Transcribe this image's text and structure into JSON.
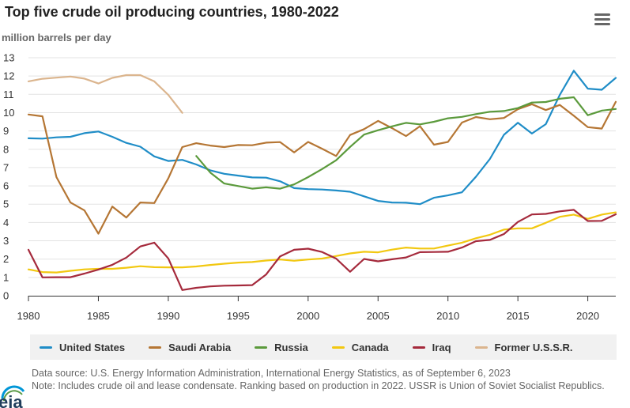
{
  "title": "Top five crude oil producing countries, 1980-2022",
  "menu": {
    "icon": "hamburger-menu-icon"
  },
  "notes": {
    "source": "Data source: U.S. Energy Information Administration, International Energy Statistics, as of September 6, 2023",
    "note": "Note: Includes crude oil and lease condensate. Ranking based on production in 2022. USSR is Union of Soviet Socialist Republics."
  },
  "logo": {
    "text": "eia",
    "colors": {
      "blue": "#0096d7",
      "green": "#5a9a46",
      "dark": "#1f3d5b"
    }
  },
  "chart_data": {
    "type": "line",
    "title": "Top five crude oil producing countries, 1980-2022",
    "ylabel": "million barrels per day",
    "xlabel": "",
    "xlim": [
      1980,
      2022
    ],
    "ylim": [
      0,
      13
    ],
    "xticks": [
      1980,
      1985,
      1990,
      1995,
      2000,
      2005,
      2010,
      2015,
      2020
    ],
    "yticks": [
      0,
      1,
      2,
      3,
      4,
      5,
      6,
      7,
      8,
      9,
      10,
      11,
      12,
      13
    ],
    "grid": "horizontal",
    "legend_position": "bottom",
    "series": [
      {
        "name": "United States",
        "color": "#1f8dc7",
        "x": [
          1980,
          1981,
          1982,
          1983,
          1984,
          1985,
          1986,
          1987,
          1988,
          1989,
          1990,
          1991,
          1992,
          1993,
          1994,
          1995,
          1996,
          1997,
          1998,
          1999,
          2000,
          2001,
          2002,
          2003,
          2004,
          2005,
          2006,
          2007,
          2008,
          2009,
          2010,
          2011,
          2012,
          2013,
          2014,
          2015,
          2016,
          2017,
          2018,
          2019,
          2020,
          2021,
          2022
        ],
        "values": [
          8.6,
          8.58,
          8.65,
          8.68,
          8.88,
          8.97,
          8.68,
          8.35,
          8.14,
          7.61,
          7.36,
          7.42,
          7.17,
          6.85,
          6.66,
          6.56,
          6.46,
          6.45,
          6.25,
          5.88,
          5.82,
          5.8,
          5.75,
          5.68,
          5.43,
          5.18,
          5.09,
          5.08,
          5.0,
          5.35,
          5.48,
          5.65,
          6.5,
          7.47,
          8.79,
          9.45,
          8.86,
          9.37,
          10.97,
          12.29,
          11.31,
          11.25,
          11.9
        ]
      },
      {
        "name": "Saudi Arabia",
        "color": "#b57634",
        "x": [
          1980,
          1981,
          1982,
          1983,
          1984,
          1985,
          1986,
          1987,
          1988,
          1989,
          1990,
          1991,
          1992,
          1993,
          1994,
          1995,
          1996,
          1997,
          1998,
          1999,
          2000,
          2001,
          2002,
          2003,
          2004,
          2005,
          2006,
          2007,
          2008,
          2009,
          2010,
          2011,
          2012,
          2013,
          2014,
          2015,
          2016,
          2017,
          2018,
          2019,
          2020,
          2021,
          2022
        ],
        "values": [
          9.9,
          9.8,
          6.48,
          5.09,
          4.66,
          3.39,
          4.87,
          4.27,
          5.09,
          5.06,
          6.41,
          8.12,
          8.33,
          8.2,
          8.12,
          8.23,
          8.22,
          8.36,
          8.39,
          7.83,
          8.4,
          8.03,
          7.63,
          8.78,
          9.1,
          9.55,
          9.15,
          8.72,
          9.26,
          8.25,
          8.4,
          9.46,
          9.76,
          9.64,
          9.71,
          10.19,
          10.46,
          10.14,
          10.42,
          9.83,
          9.21,
          9.13,
          10.59
        ]
      },
      {
        "name": "Russia",
        "color": "#5b9a3c",
        "x": [
          1992,
          1993,
          1994,
          1995,
          1996,
          1997,
          1998,
          1999,
          2000,
          2001,
          2002,
          2003,
          2004,
          2005,
          2006,
          2007,
          2008,
          2009,
          2010,
          2011,
          2012,
          2013,
          2014,
          2015,
          2016,
          2017,
          2018,
          2019,
          2020,
          2021,
          2022
        ],
        "values": [
          7.63,
          6.73,
          6.13,
          5.99,
          5.85,
          5.92,
          5.85,
          6.08,
          6.48,
          6.92,
          7.4,
          8.13,
          8.8,
          9.04,
          9.25,
          9.44,
          9.36,
          9.5,
          9.69,
          9.77,
          9.92,
          10.05,
          10.09,
          10.25,
          10.55,
          10.58,
          10.76,
          10.84,
          9.86,
          10.11,
          10.2
        ]
      },
      {
        "name": "Canada",
        "color": "#f2c811",
        "x": [
          1980,
          1981,
          1982,
          1983,
          1984,
          1985,
          1986,
          1987,
          1988,
          1989,
          1990,
          1991,
          1992,
          1993,
          1994,
          1995,
          1996,
          1997,
          1998,
          1999,
          2000,
          2001,
          2002,
          2003,
          2004,
          2005,
          2006,
          2007,
          2008,
          2009,
          2010,
          2011,
          2012,
          2013,
          2014,
          2015,
          2016,
          2017,
          2018,
          2019,
          2020,
          2021,
          2022
        ],
        "values": [
          1.44,
          1.29,
          1.27,
          1.36,
          1.44,
          1.47,
          1.47,
          1.53,
          1.61,
          1.56,
          1.55,
          1.55,
          1.6,
          1.68,
          1.75,
          1.81,
          1.84,
          1.92,
          1.98,
          1.91,
          1.98,
          2.03,
          2.17,
          2.31,
          2.4,
          2.37,
          2.52,
          2.63,
          2.58,
          2.58,
          2.74,
          2.9,
          3.14,
          3.33,
          3.61,
          3.68,
          3.68,
          3.98,
          4.31,
          4.43,
          4.2,
          4.43,
          4.55
        ]
      },
      {
        "name": "Iraq",
        "color": "#a52a3c",
        "x": [
          1980,
          1981,
          1982,
          1983,
          1984,
          1985,
          1986,
          1987,
          1988,
          1989,
          1990,
          1991,
          1992,
          1993,
          1994,
          1995,
          1996,
          1997,
          1998,
          1999,
          2000,
          2001,
          2002,
          2003,
          2004,
          2005,
          2006,
          2007,
          2008,
          2009,
          2010,
          2011,
          2012,
          2013,
          2014,
          2015,
          2016,
          2017,
          2018,
          2019,
          2020,
          2021,
          2022
        ],
        "values": [
          2.51,
          1.0,
          1.01,
          1.01,
          1.21,
          1.43,
          1.69,
          2.08,
          2.69,
          2.9,
          2.04,
          0.31,
          0.43,
          0.51,
          0.55,
          0.56,
          0.58,
          1.16,
          2.15,
          2.51,
          2.57,
          2.39,
          2.03,
          1.31,
          2.01,
          1.88,
          1.99,
          2.09,
          2.38,
          2.39,
          2.4,
          2.63,
          2.98,
          3.05,
          3.37,
          4.03,
          4.44,
          4.47,
          4.61,
          4.69,
          4.08,
          4.09,
          4.45
        ]
      },
      {
        "name": "Former U.S.S.R.",
        "color": "#dbb58e",
        "x": [
          1980,
          1981,
          1982,
          1983,
          1984,
          1985,
          1986,
          1987,
          1988,
          1989,
          1990,
          1991
        ],
        "values": [
          11.71,
          11.85,
          11.91,
          11.97,
          11.86,
          11.59,
          11.9,
          12.05,
          12.05,
          11.71,
          10.97,
          9.99
        ]
      }
    ]
  }
}
